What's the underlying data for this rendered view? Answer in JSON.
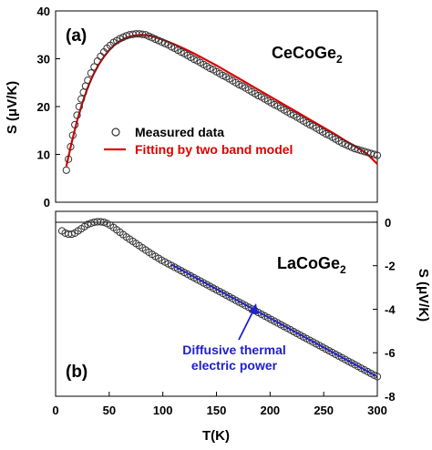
{
  "chart_data": [
    {
      "type": "scatter",
      "panel_label": "(a)",
      "compound": "CeCoGe",
      "compound_subscript": "2",
      "ylabel": "S  (μV/K)",
      "ylim": [
        0,
        40
      ],
      "xlim": [
        0,
        300
      ],
      "yticks": [
        "0",
        "10",
        "20",
        "30",
        "40"
      ],
      "series": [
        {
          "name": "Measured data",
          "marker": "open-circle",
          "color": "#333333",
          "x": [
            10,
            12,
            14,
            16,
            18,
            20,
            22,
            24,
            26,
            28,
            30,
            33,
            36,
            39,
            42,
            45,
            48,
            51,
            54,
            57,
            60,
            63,
            66,
            69,
            72,
            75,
            78,
            81,
            84,
            87,
            90,
            93,
            96,
            99,
            102,
            105,
            108,
            111,
            114,
            117,
            120,
            123,
            126,
            129,
            132,
            135,
            138,
            141,
            144,
            147,
            150,
            153,
            156,
            159,
            162,
            165,
            168,
            171,
            174,
            177,
            180,
            183,
            186,
            189,
            192,
            195,
            198,
            201,
            204,
            207,
            210,
            213,
            216,
            219,
            222,
            225,
            228,
            231,
            234,
            237,
            240,
            243,
            246,
            249,
            252,
            255,
            258,
            261,
            264,
            267,
            270,
            273,
            276,
            279,
            282,
            285,
            288,
            291,
            294,
            297,
            300
          ],
          "y": [
            6.7,
            9.0,
            11.6,
            14.0,
            16.2,
            18.2,
            20.0,
            21.6,
            23.0,
            24.3,
            25.5,
            27.0,
            28.3,
            29.5,
            30.5,
            31.4,
            32.2,
            32.8,
            33.4,
            33.8,
            34.2,
            34.5,
            34.8,
            35.0,
            35.1,
            35.2,
            35.2,
            35.1,
            35.0,
            34.7,
            34.4,
            34.1,
            33.8,
            33.5,
            33.2,
            32.9,
            32.5,
            32.2,
            31.8,
            31.4,
            31.1,
            30.7,
            30.3,
            29.9,
            29.6,
            29.2,
            28.8,
            28.4,
            28.0,
            27.7,
            27.3,
            26.9,
            26.5,
            26.2,
            25.8,
            25.4,
            25.0,
            24.6,
            24.3,
            23.9,
            23.5,
            23.1,
            22.7,
            22.3,
            22.0,
            21.6,
            21.2,
            20.8,
            20.4,
            20.1,
            19.7,
            19.3,
            18.9,
            18.5,
            18.2,
            17.8,
            17.4,
            17.0,
            16.6,
            16.2,
            15.9,
            15.5,
            15.1,
            14.7,
            14.3,
            14.0,
            13.6,
            13.2,
            12.8,
            12.4,
            12.1,
            11.8,
            11.5,
            11.2,
            11.0,
            10.8,
            10.6,
            10.4,
            10.2,
            10.0,
            9.8
          ]
        },
        {
          "name": "Fitting by two band model",
          "marker": "line",
          "color": "#dd0000",
          "x": [
            10,
            15,
            20,
            25,
            30,
            35,
            40,
            45,
            50,
            55,
            60,
            65,
            70,
            75,
            80,
            85,
            90,
            100,
            110,
            120,
            130,
            140,
            150,
            160,
            170,
            180,
            190,
            200,
            210,
            220,
            230,
            240,
            250,
            260,
            270,
            280,
            290,
            300
          ],
          "y": [
            7.5,
            12.5,
            17.0,
            20.8,
            24.0,
            26.6,
            28.7,
            30.4,
            31.8,
            32.9,
            33.7,
            34.3,
            34.7,
            34.9,
            35.0,
            34.9,
            34.7,
            34.0,
            33.1,
            32.1,
            31.0,
            29.8,
            28.6,
            27.3,
            26.0,
            24.7,
            23.4,
            22.1,
            20.8,
            19.5,
            18.2,
            16.9,
            15.6,
            14.3,
            12.9,
            11.6,
            10.2,
            8.0
          ]
        }
      ]
    },
    {
      "type": "scatter",
      "panel_label": "(b)",
      "compound": "LaCoGe",
      "compound_subscript": "2",
      "xlabel": "T(K)",
      "ylabel": "S  (μV/K)",
      "ylim": [
        -8,
        0.5
      ],
      "xlim": [
        0,
        300
      ],
      "xticks": [
        "0",
        "50",
        "100",
        "150",
        "200",
        "250",
        "300"
      ],
      "yticks": [
        "0",
        "-2",
        "-4",
        "-6",
        "-8"
      ],
      "annotation": [
        "Diffusive thermal",
        "electric power"
      ],
      "series": [
        {
          "name": "Measured data",
          "marker": "open-circle",
          "color": "#333333",
          "x": [
            6,
            9,
            12,
            15,
            18,
            21,
            24,
            27,
            30,
            33,
            36,
            39,
            42,
            45,
            48,
            51,
            54,
            57,
            60,
            63,
            66,
            69,
            72,
            75,
            78,
            81,
            84,
            87,
            90,
            93,
            96,
            99,
            102,
            105,
            108,
            111,
            114,
            117,
            120,
            123,
            126,
            129,
            132,
            135,
            138,
            141,
            144,
            147,
            150,
            153,
            156,
            159,
            162,
            165,
            168,
            171,
            174,
            177,
            180,
            183,
            186,
            189,
            192,
            195,
            198,
            201,
            204,
            207,
            210,
            213,
            216,
            219,
            222,
            225,
            228,
            231,
            234,
            237,
            240,
            243,
            246,
            249,
            252,
            255,
            258,
            261,
            264,
            267,
            270,
            273,
            276,
            279,
            282,
            285,
            288,
            291,
            294,
            297,
            300
          ],
          "y": [
            -0.4,
            -0.5,
            -0.55,
            -0.55,
            -0.5,
            -0.4,
            -0.3,
            -0.2,
            -0.1,
            -0.05,
            0.0,
            0.02,
            0.02,
            0.0,
            -0.06,
            -0.14,
            -0.24,
            -0.35,
            -0.46,
            -0.57,
            -0.68,
            -0.78,
            -0.88,
            -0.98,
            -1.08,
            -1.18,
            -1.28,
            -1.38,
            -1.48,
            -1.57,
            -1.66,
            -1.75,
            -1.83,
            -1.91,
            -1.99,
            -2.07,
            -2.15,
            -2.23,
            -2.31,
            -2.39,
            -2.47,
            -2.55,
            -2.63,
            -2.71,
            -2.79,
            -2.87,
            -2.95,
            -3.03,
            -3.11,
            -3.19,
            -3.27,
            -3.35,
            -3.43,
            -3.51,
            -3.59,
            -3.67,
            -3.75,
            -3.83,
            -3.91,
            -3.99,
            -4.07,
            -4.15,
            -4.23,
            -4.31,
            -4.39,
            -4.47,
            -4.55,
            -4.63,
            -4.71,
            -4.79,
            -4.87,
            -4.95,
            -5.03,
            -5.11,
            -5.19,
            -5.27,
            -5.35,
            -5.43,
            -5.51,
            -5.59,
            -5.67,
            -5.75,
            -5.83,
            -5.91,
            -5.99,
            -6.07,
            -6.15,
            -6.23,
            -6.31,
            -6.39,
            -6.47,
            -6.55,
            -6.63,
            -6.71,
            -6.79,
            -6.87,
            -6.95,
            -7.03,
            -7.1
          ]
        },
        {
          "name": "Diffusive thermal electric power",
          "marker": "line",
          "color": "#2020cc",
          "x": [
            108,
            300
          ],
          "y": [
            -1.95,
            -7.1
          ]
        }
      ]
    }
  ]
}
